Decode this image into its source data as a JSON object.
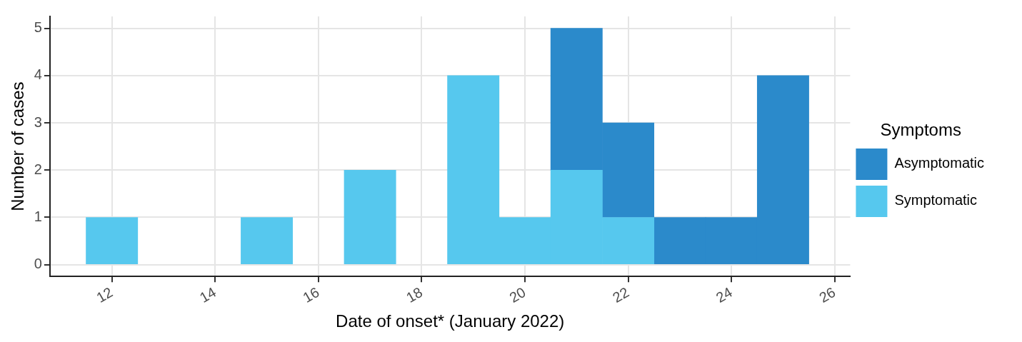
{
  "chart_data": {
    "type": "bar",
    "stacked": true,
    "xlabel": "Date of onset* (January 2022)",
    "ylabel": "Number of cases",
    "legend_title": "Symptoms",
    "legend": "right",
    "grid": true,
    "xlim": [
      10.8,
      26.3
    ],
    "xticks": [
      12,
      14,
      16,
      18,
      20,
      22,
      24,
      26
    ],
    "ylim": [
      -0.25,
      5.25
    ],
    "yticks": [
      0,
      1,
      2,
      3,
      4,
      5
    ],
    "x": [
      12,
      15,
      17,
      19,
      20,
      21,
      22,
      23,
      24,
      25
    ],
    "series": [
      {
        "name": "Symptomatic",
        "color": "#56c8ee",
        "values": [
          1,
          1,
          2,
          4,
          1,
          2,
          1,
          null,
          null,
          null
        ]
      },
      {
        "name": "Asymptomatic",
        "color": "#2b8acb",
        "values": [
          null,
          null,
          null,
          null,
          null,
          3,
          2,
          1,
          1,
          4
        ]
      }
    ]
  }
}
